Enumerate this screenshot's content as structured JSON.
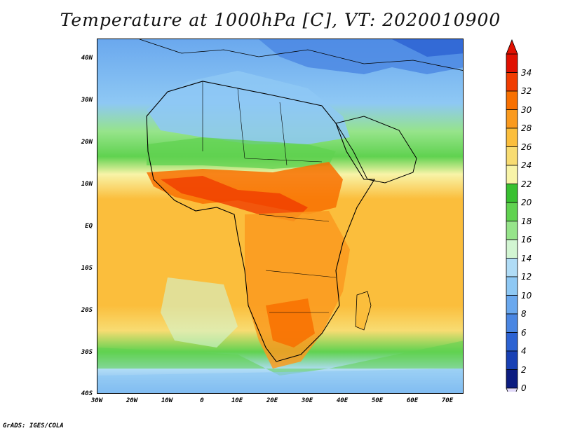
{
  "title": "Temperature at 1000hPa [C], VT: 2020010900",
  "footer": "GrADS: IGES/COLA",
  "lat_labels": [
    "40N",
    "30N",
    "20N",
    "10N",
    "EQ",
    "10S",
    "20S",
    "30S",
    "40S"
  ],
  "lon_labels": [
    "30W",
    "20W",
    "10W",
    "0",
    "10E",
    "20E",
    "30E",
    "40E",
    "50E",
    "60E",
    "70E"
  ],
  "colorbar": {
    "levels": [
      "34",
      "32",
      "30",
      "28",
      "26",
      "24",
      "22",
      "20",
      "18",
      "16",
      "14",
      "12",
      "10",
      "8",
      "6",
      "4",
      "2",
      "0"
    ],
    "colors_top_to_bottom": [
      "#e01000",
      "#f03c00",
      "#f87000",
      "#fa9a1e",
      "#fbbe3c",
      "#f8dc72",
      "#f8f4a8",
      "#38c030",
      "#60d250",
      "#96e48a",
      "#d2f5d2",
      "#b0dcf6",
      "#8ec8f4",
      "#6aa8ee",
      "#4a86e2",
      "#2c62d2",
      "#1840b4",
      "#0c1c80"
    ],
    "low_arrow_color": "#e0d8f8",
    "high_arrow_color": "#e01000"
  }
}
